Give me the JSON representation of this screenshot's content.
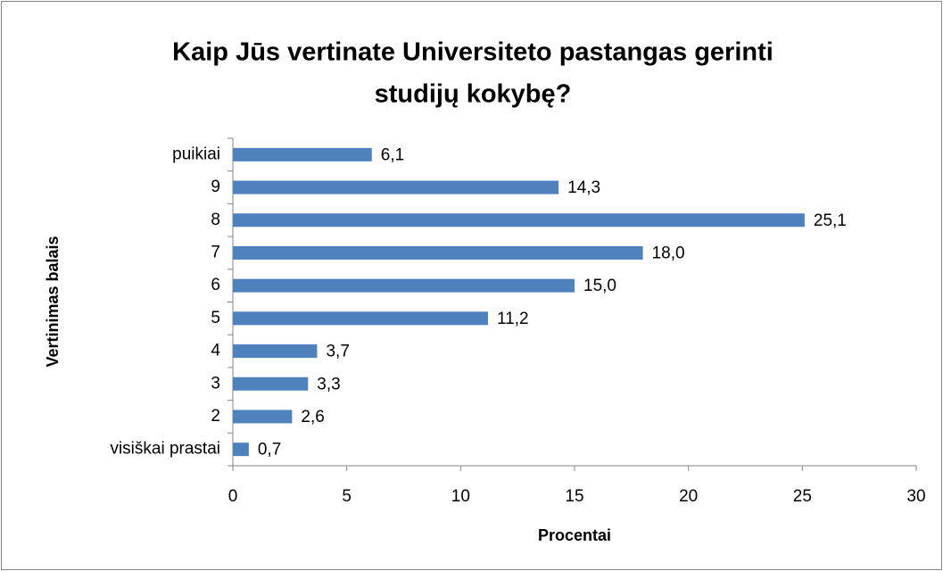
{
  "chart_data": {
    "type": "bar",
    "orientation": "horizontal",
    "title": [
      "Kaip Jūs vertinate Universiteto pastangas gerinti",
      "studijų kokybę?"
    ],
    "x_label": "Procentai",
    "y_label": "Vertinimas balais",
    "categories": [
      "puikiai",
      "9",
      "8",
      "7",
      "6",
      "5",
      "4",
      "3",
      "2",
      "visiškai prastai"
    ],
    "values": [
      6.1,
      14.3,
      25.1,
      18.0,
      15.0,
      11.2,
      3.7,
      3.3,
      2.6,
      0.7
    ],
    "value_labels": [
      "6,1",
      "14,3",
      "25,1",
      "18,0",
      "15,0",
      "11,2",
      "3,7",
      "3,3",
      "2,6",
      "0,7"
    ],
    "color": "#4f81bd",
    "xlim": [
      0,
      30
    ],
    "xticks": [
      0,
      5,
      10,
      15,
      20,
      25,
      30
    ],
    "grid": false
  }
}
